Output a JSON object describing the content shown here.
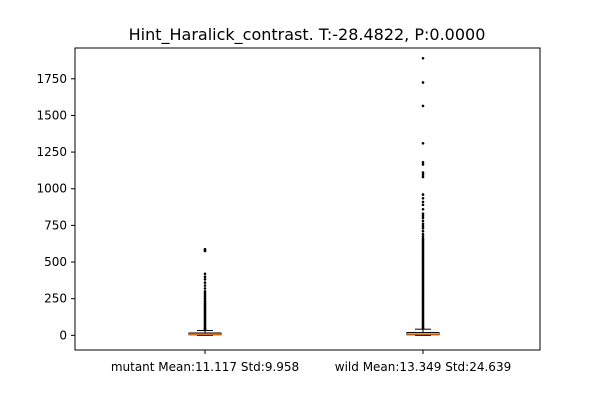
{
  "chart_data": {
    "type": "box",
    "title": "Hint_Haralick_contrast. T:-28.4822, P:0.0000",
    "xlabel": "",
    "ylabel": "",
    "ylim": [
      -100,
      1960
    ],
    "yticks": [
      0,
      250,
      500,
      750,
      1000,
      1250,
      1500,
      1750
    ],
    "categories": [
      "mutant Mean:11.117 Std:9.958",
      "wild Mean:13.349 Std:24.639"
    ],
    "grid": false,
    "series": [
      {
        "q1": 4,
        "median": 8,
        "q3": 16,
        "whisker_low": 0,
        "whisker_high": 33,
        "outliers": [
          580,
          588,
          575,
          420,
          400,
          382,
          360,
          340,
          320,
          300,
          288,
          276,
          264,
          252,
          240,
          230,
          220,
          212,
          204,
          196,
          188,
          180,
          172,
          164,
          156,
          148,
          140,
          132,
          124,
          116,
          108,
          100,
          92,
          84,
          76,
          68,
          60,
          52,
          46,
          40,
          36
        ]
      },
      {
        "q1": 4,
        "median": 9,
        "q3": 19,
        "whisker_low": 0,
        "whisker_high": 42,
        "outliers": [
          1890,
          1725,
          1565,
          1310,
          1180,
          1165,
          1110,
          1095,
          1080,
          960,
          935,
          910,
          890,
          860,
          830,
          815,
          800,
          780,
          760,
          745,
          730,
          710,
          690,
          675,
          660,
          650,
          640,
          630,
          620,
          610,
          600,
          590,
          580,
          570,
          560,
          550,
          540,
          530,
          520,
          510,
          500,
          490,
          480,
          470,
          460,
          450,
          440,
          430,
          420,
          410,
          400,
          390,
          380,
          370,
          360,
          350,
          340,
          330,
          320,
          310,
          300,
          290,
          280,
          270,
          260,
          250,
          240,
          230,
          220,
          210,
          200,
          190,
          180,
          170,
          160,
          150,
          140,
          130,
          120,
          110,
          100,
          90,
          80,
          70,
          60,
          52,
          46
        ]
      }
    ],
    "colors": {
      "box": "#000000",
      "median": "#ff7f0e",
      "outlier": "#000000"
    }
  }
}
